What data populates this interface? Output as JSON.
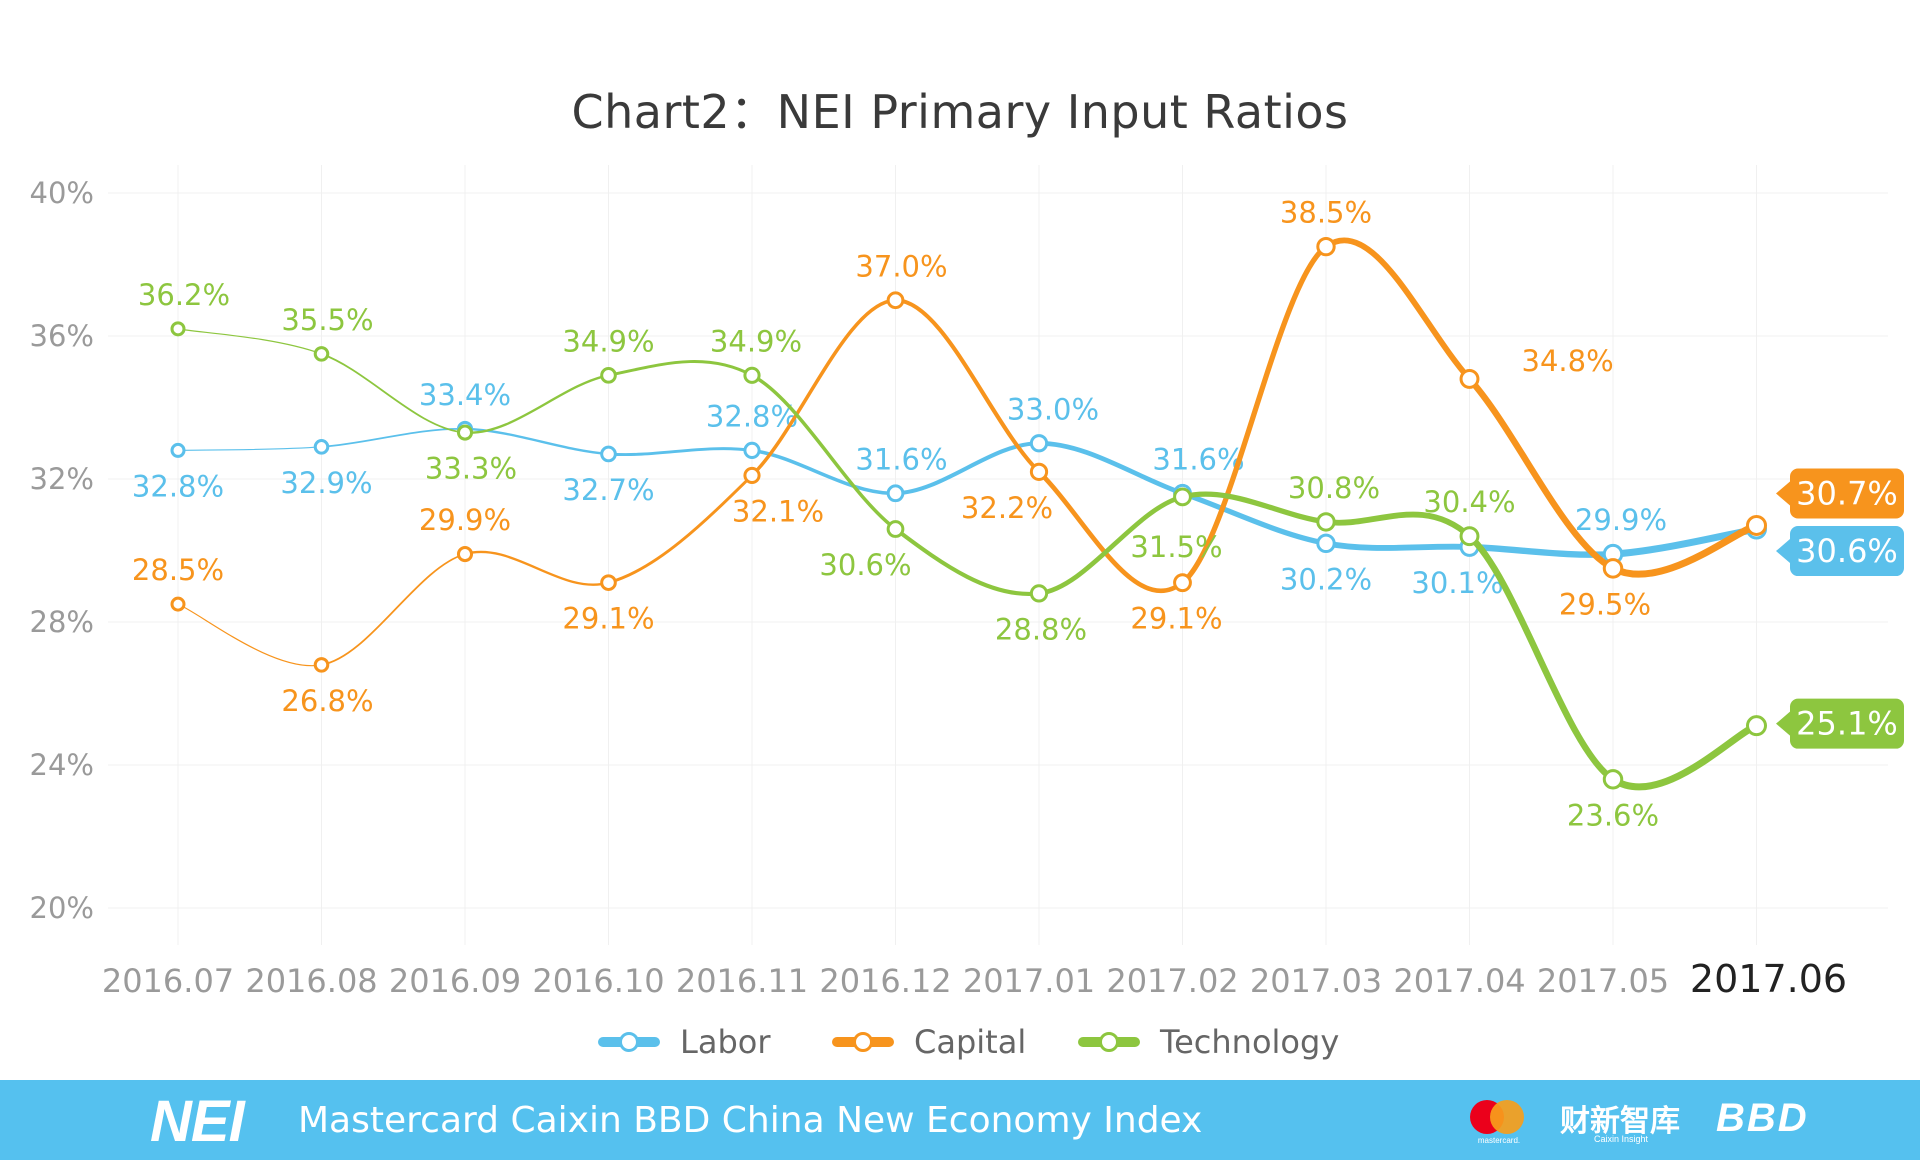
{
  "chart_data": {
    "type": "line",
    "title": "Chart2：NEI Primary Input Ratios",
    "xlabel": "",
    "ylabel": "",
    "categories": [
      "2016.07",
      "2016.08",
      "2016.09",
      "2016.10",
      "2016.11",
      "2016.12",
      "2017.01",
      "2017.02",
      "2017.03",
      "2017.04",
      "2017.05",
      "2017.06"
    ],
    "y_ticks": [
      "20%",
      "24%",
      "28%",
      "32%",
      "36%",
      "40%"
    ],
    "ylim": [
      20,
      40
    ],
    "grid": true,
    "legend_position": "bottom",
    "series": [
      {
        "name": "Labor",
        "color": "#5bc0eb",
        "values": [
          32.8,
          32.9,
          33.4,
          32.7,
          32.8,
          31.6,
          33.0,
          31.6,
          30.2,
          30.1,
          29.9,
          30.6
        ],
        "labels": [
          "32.8%",
          "32.9%",
          "33.4%",
          "32.7%",
          "32.8%",
          "31.6%",
          "33.0%",
          "31.6%",
          "30.2%",
          "30.1%",
          "29.9%",
          "30.6%"
        ]
      },
      {
        "name": "Capital",
        "color": "#f7941d",
        "values": [
          28.5,
          26.8,
          29.9,
          29.1,
          32.1,
          37.0,
          32.2,
          29.1,
          38.5,
          34.8,
          29.5,
          30.7
        ],
        "labels": [
          "28.5%",
          "26.8%",
          "29.9%",
          "29.1%",
          "32.1%",
          "37.0%",
          "32.2%",
          "29.1%",
          "38.5%",
          "34.8%",
          "29.5%",
          "30.7%"
        ]
      },
      {
        "name": "Technology",
        "color": "#8dc63f",
        "values": [
          36.2,
          35.5,
          33.3,
          34.9,
          34.9,
          30.6,
          28.8,
          31.5,
          30.8,
          30.4,
          23.6,
          25.1
        ],
        "labels": [
          "36.2%",
          "35.5%",
          "33.3%",
          "34.9%",
          "34.9%",
          "30.6%",
          "28.8%",
          "31.5%",
          "30.8%",
          "30.4%",
          "23.6%",
          "25.1%"
        ]
      }
    ]
  },
  "footer": {
    "logo": "NEI",
    "text": "Mastercard Caixin BBD China New Economy Index",
    "sponsor_mastercard": "mastercard.",
    "sponsor_caixin": "财新智库",
    "sponsor_caixin_sub": "Caixin Insight",
    "sponsor_bbd": "BBD",
    "background_color": "#55c1ef"
  }
}
